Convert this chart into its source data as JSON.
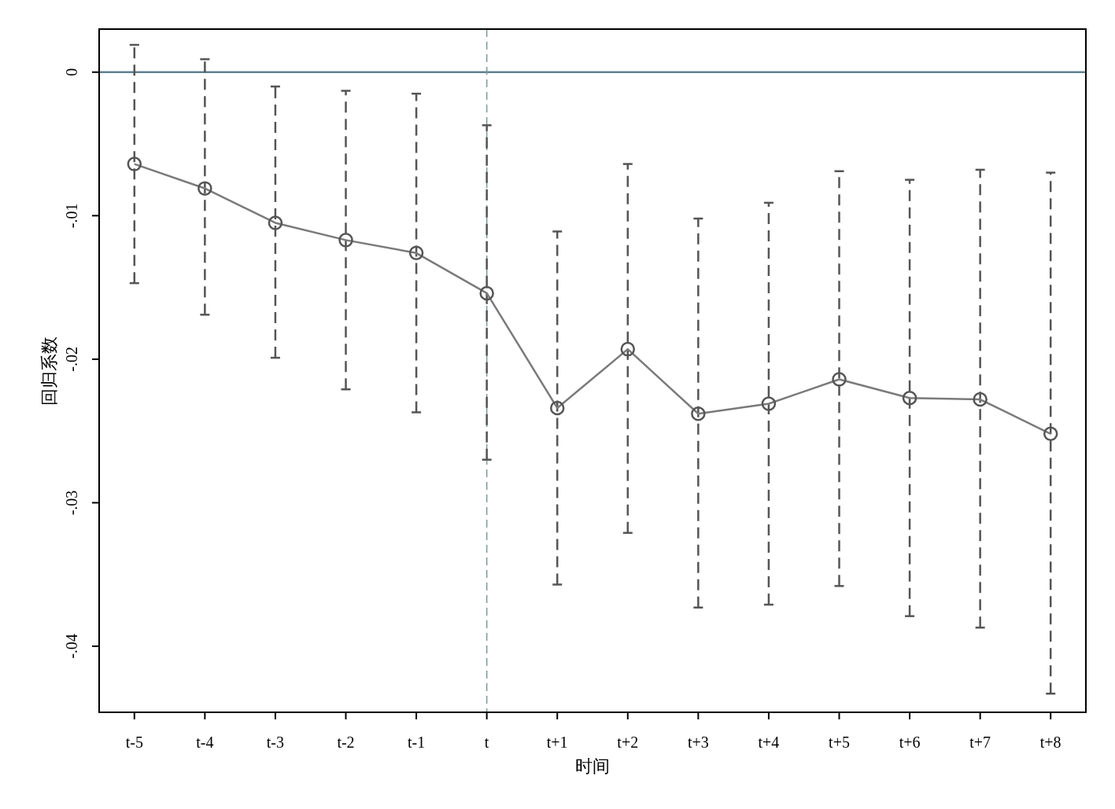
{
  "chart_data": {
    "type": "line",
    "xlabel": "时间",
    "ylabel": "回归系数",
    "categories": [
      "t-5",
      "t-4",
      "t-3",
      "t-2",
      "t-1",
      "t",
      "t+1",
      "t+2",
      "t+3",
      "t+4",
      "t+5",
      "t+6",
      "t+7",
      "t+8"
    ],
    "series": [
      {
        "color": "#7a7a7a",
        "values": [
          -0.0064,
          -0.0081,
          -0.0105,
          -0.0117,
          -0.0126,
          -0.0154,
          -0.0234,
          -0.0193,
          -0.0238,
          -0.0231,
          -0.0214,
          -0.0227,
          -0.0228,
          -0.0252
        ],
        "errors": [
          [
            -0.0147,
            0.0019
          ],
          [
            -0.0169,
            0.0009
          ],
          [
            -0.0199,
            -0.001
          ],
          [
            -0.0221,
            -0.0013
          ],
          [
            -0.0237,
            -0.0015
          ],
          [
            -0.027,
            -0.0037
          ],
          [
            -0.0357,
            -0.0111
          ],
          [
            -0.0321,
            -0.0064
          ],
          [
            -0.0373,
            -0.0102
          ],
          [
            -0.0371,
            -0.0091
          ],
          [
            -0.0358,
            -0.0069
          ],
          [
            -0.0379,
            -0.0075
          ],
          [
            -0.0387,
            -0.0068
          ],
          [
            -0.0433,
            -0.007
          ]
        ]
      }
    ],
    "ylim": [
      -0.0446,
      0.003
    ],
    "yticks": [
      {
        "value": 0,
        "label": "0"
      },
      {
        "value": -0.01,
        "label": "-.01"
      },
      {
        "value": -0.02,
        "label": "-.02"
      },
      {
        "value": -0.03,
        "label": "-.03"
      },
      {
        "value": -0.04,
        "label": "-.04"
      }
    ],
    "ref_lines": [
      {
        "axis": "y",
        "value": 0,
        "color": "#5f8291",
        "line_style": "solid"
      },
      {
        "axis": "x",
        "value": "t",
        "color": "#7a9a98",
        "line_style": "dashed"
      }
    ],
    "marker": "circle",
    "line_style": "solid",
    "grid": false
  }
}
